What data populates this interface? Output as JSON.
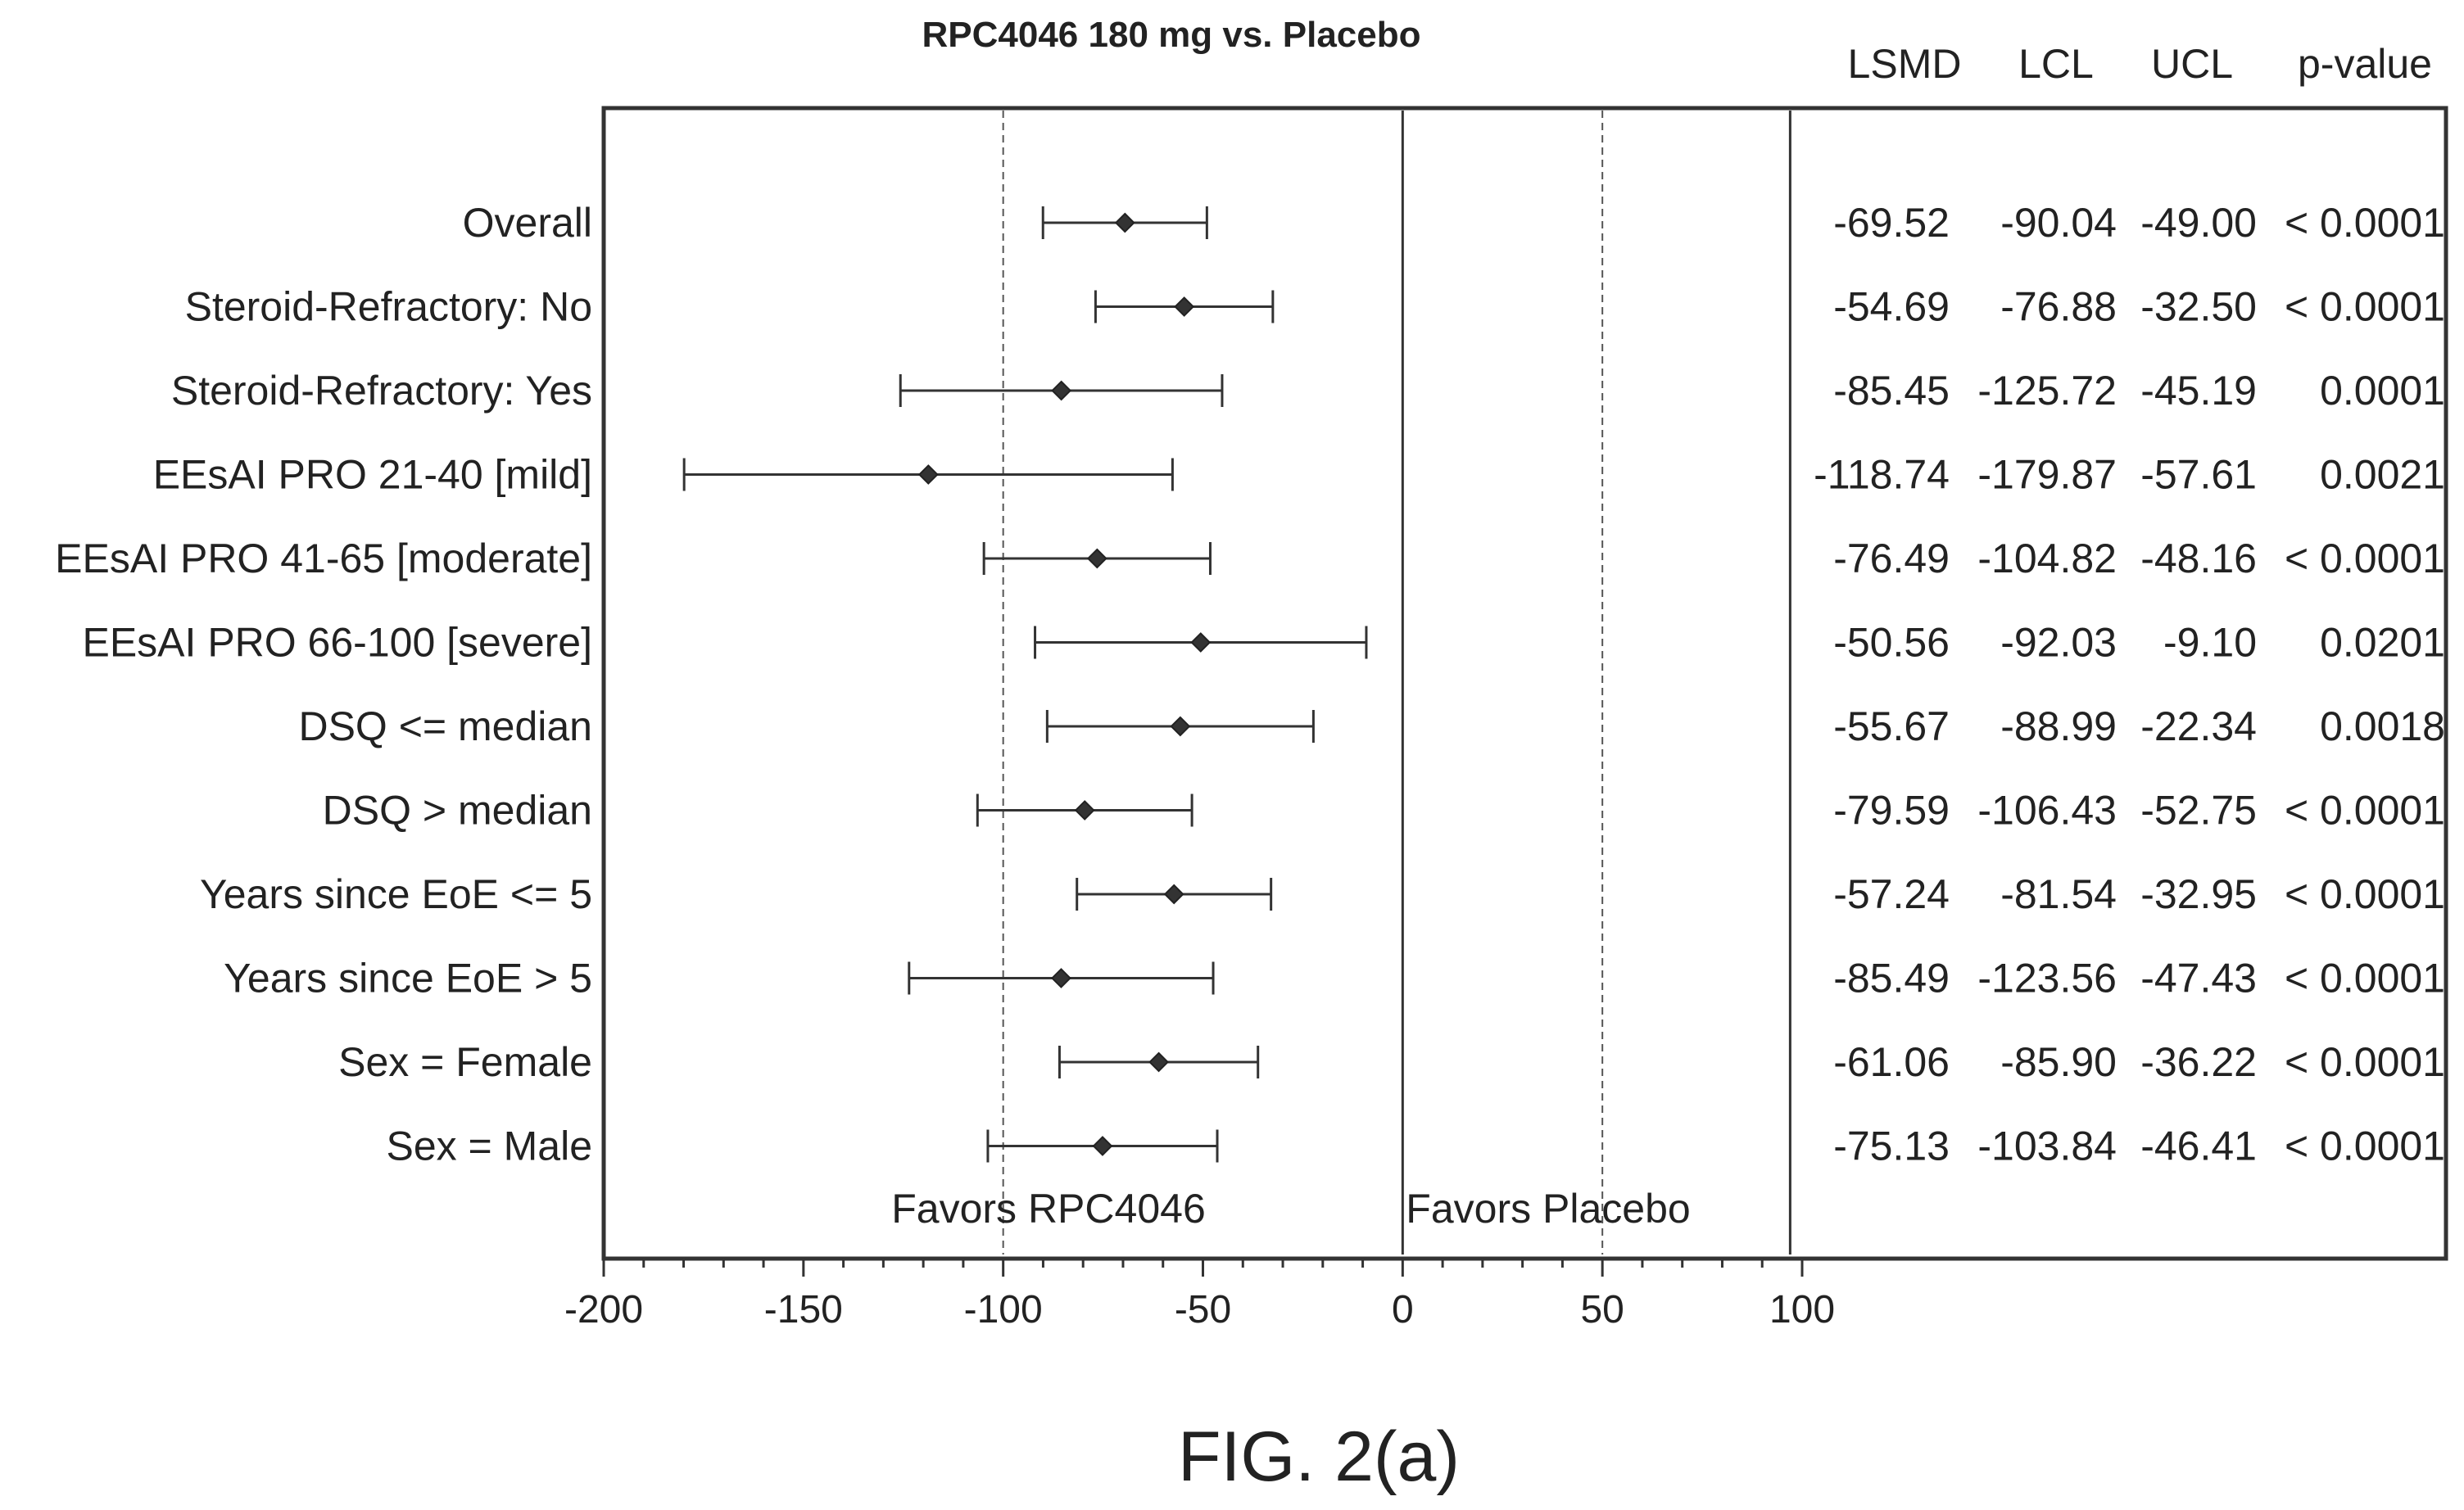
{
  "chart_data": {
    "type": "forest",
    "title": "RPC4046 180 mg vs. Placebo",
    "columns": [
      "LSMD",
      "LCL",
      "UCL",
      "p-value"
    ],
    "rows": [
      {
        "label": "Overall",
        "lsmd": -69.52,
        "lcl": -90.04,
        "ucl": -49.0,
        "cells": [
          "-69.52",
          "-90.04",
          "-49.00",
          "< 0.0001"
        ]
      },
      {
        "label": "Steroid-Refractory: No",
        "lsmd": -54.69,
        "lcl": -76.88,
        "ucl": -32.5,
        "cells": [
          "-54.69",
          "-76.88",
          "-32.50",
          "< 0.0001"
        ]
      },
      {
        "label": "Steroid-Refractory: Yes",
        "lsmd": -85.45,
        "lcl": -125.72,
        "ucl": -45.19,
        "cells": [
          "-85.45",
          "-125.72",
          "-45.19",
          "0.0001"
        ]
      },
      {
        "label": "EEsAI PRO 21-40 [mild]",
        "lsmd": -118.74,
        "lcl": -179.87,
        "ucl": -57.61,
        "cells": [
          "-118.74",
          "-179.87",
          "-57.61",
          "0.0021"
        ]
      },
      {
        "label": "EEsAI PRO 41-65 [moderate]",
        "lsmd": -76.49,
        "lcl": -104.82,
        "ucl": -48.16,
        "cells": [
          "-76.49",
          "-104.82",
          "-48.16",
          "< 0.0001"
        ]
      },
      {
        "label": "EEsAI PRO 66-100 [severe]",
        "lsmd": -50.56,
        "lcl": -92.03,
        "ucl": -9.1,
        "cells": [
          "-50.56",
          "-92.03",
          "-9.10",
          "0.0201"
        ]
      },
      {
        "label": "DSQ <= median",
        "lsmd": -55.67,
        "lcl": -88.99,
        "ucl": -22.34,
        "cells": [
          "-55.67",
          "-88.99",
          "-22.34",
          "0.0018"
        ]
      },
      {
        "label": "DSQ > median",
        "lsmd": -79.59,
        "lcl": -106.43,
        "ucl": -52.75,
        "cells": [
          "-79.59",
          "-106.43",
          "-52.75",
          "< 0.0001"
        ]
      },
      {
        "label": "Years since EoE <= 5",
        "lsmd": -57.24,
        "lcl": -81.54,
        "ucl": -32.95,
        "cells": [
          "-57.24",
          "-81.54",
          "-32.95",
          "< 0.0001"
        ]
      },
      {
        "label": "Years since EoE > 5",
        "lsmd": -85.49,
        "lcl": -123.56,
        "ucl": -47.43,
        "cells": [
          "-85.49",
          "-123.56",
          "-47.43",
          "< 0.0001"
        ]
      },
      {
        "label": "Sex = Female",
        "lsmd": -61.06,
        "lcl": -85.9,
        "ucl": -36.22,
        "cells": [
          "-61.06",
          "-85.90",
          "-36.22",
          "< 0.0001"
        ]
      },
      {
        "label": "Sex = Male",
        "lsmd": -75.13,
        "lcl": -103.84,
        "ucl": -46.41,
        "cells": [
          "-75.13",
          "-103.84",
          "-46.41",
          "< 0.0001"
        ]
      }
    ],
    "xlim": [
      -200,
      100
    ],
    "xticks": [
      -200,
      -150,
      -100,
      -50,
      0,
      50,
      100
    ],
    "xtick_labels": [
      "-200",
      "-150",
      "-100",
      "-50",
      "0",
      "50",
      "100"
    ],
    "reference_lines": [
      {
        "x": 0,
        "style": "solid"
      },
      {
        "x": -100,
        "style": "dashed"
      },
      {
        "x": 50,
        "style": "dashed"
      },
      {
        "x": 97,
        "style": "solid"
      }
    ],
    "favors_left": "Favors RPC4046",
    "favors_right": "Favors Placebo",
    "grid": false,
    "marker": "diamond"
  },
  "caption": "FIG. 2(a)"
}
